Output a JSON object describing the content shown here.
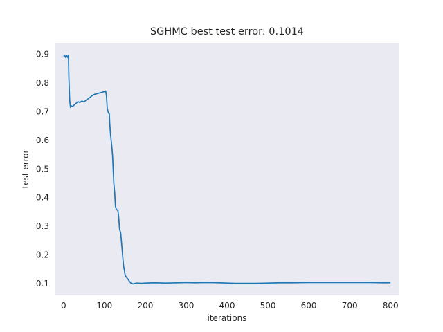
{
  "chart_data": {
    "type": "line",
    "title": "SGHMC best test error: 0.1014",
    "xlabel": "iterations",
    "ylabel": "test error",
    "xlim": [
      -20,
      820
    ],
    "ylim": [
      0.059,
      0.94
    ],
    "xticks": [
      0,
      100,
      200,
      300,
      400,
      500,
      600,
      700,
      800
    ],
    "yticks": [
      0.1,
      0.2,
      0.3,
      0.4,
      0.5,
      0.6,
      0.7,
      0.8,
      0.9
    ],
    "grid": false,
    "background": "#eaeaf2",
    "series": [
      {
        "color": "#1f77b4",
        "x": [
          0,
          3,
          5,
          8,
          10,
          12,
          13,
          15,
          17,
          19,
          22,
          25,
          30,
          35,
          40,
          45,
          50,
          55,
          60,
          65,
          70,
          75,
          80,
          85,
          90,
          95,
          100,
          103,
          105,
          107,
          110,
          112,
          113,
          115,
          118,
          120,
          123,
          125,
          127,
          128,
          129,
          131,
          133,
          135,
          137,
          140,
          142,
          143,
          145,
          147,
          149,
          150,
          151,
          153,
          155,
          158,
          160,
          163,
          165,
          168,
          170,
          173,
          175,
          180,
          190,
          200,
          220,
          250,
          280,
          300,
          320,
          350,
          380,
          400,
          420,
          440,
          450,
          470,
          500,
          530,
          560,
          600,
          650,
          700,
          720,
          750,
          780,
          800
        ],
        "y": [
          0.893,
          0.896,
          0.889,
          0.895,
          0.889,
          0.896,
          0.82,
          0.74,
          0.715,
          0.72,
          0.718,
          0.722,
          0.728,
          0.735,
          0.732,
          0.737,
          0.734,
          0.74,
          0.745,
          0.75,
          0.756,
          0.76,
          0.762,
          0.764,
          0.766,
          0.768,
          0.77,
          0.772,
          0.755,
          0.71,
          0.695,
          0.693,
          0.66,
          0.62,
          0.58,
          0.545,
          0.45,
          0.42,
          0.37,
          0.365,
          0.36,
          0.357,
          0.355,
          0.33,
          0.29,
          0.275,
          0.24,
          0.225,
          0.19,
          0.16,
          0.145,
          0.135,
          0.128,
          0.124,
          0.12,
          0.115,
          0.11,
          0.105,
          0.101,
          0.1,
          0.099,
          0.1,
          0.101,
          0.102,
          0.101,
          0.102,
          0.103,
          0.102,
          0.103,
          0.104,
          0.103,
          0.104,
          0.103,
          0.102,
          0.101,
          0.101,
          0.101,
          0.101,
          0.102,
          0.103,
          0.103,
          0.104,
          0.104,
          0.104,
          0.104,
          0.104,
          0.103,
          0.103
        ]
      }
    ]
  }
}
